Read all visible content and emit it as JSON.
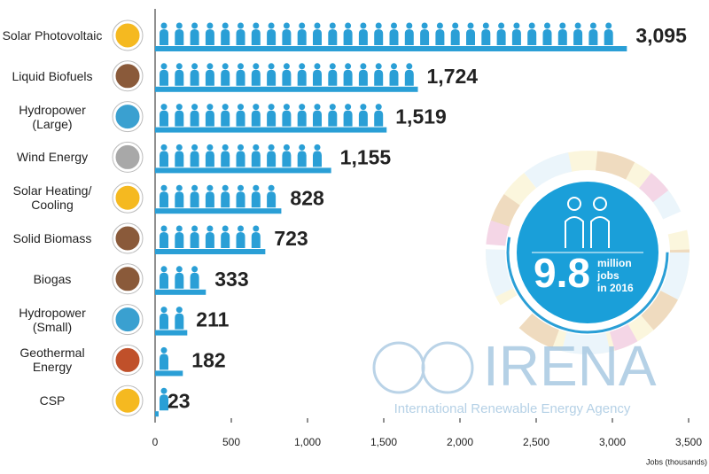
{
  "chart_data": {
    "type": "bar",
    "orientation": "horizontal",
    "categories": [
      "Solar Photovoltaic",
      "Liquid Biofuels",
      "Hydropower (Large)",
      "Wind Energy",
      "Solar Heating/ Cooling",
      "Solid Biomass",
      "Biogas",
      "Hydropower (Small)",
      "Geothermal Energy",
      "CSP"
    ],
    "values": [
      3095,
      1724,
      1519,
      1155,
      828,
      723,
      333,
      211,
      182,
      23
    ],
    "value_labels": [
      "3,095",
      "1,724",
      "1,519",
      "1,155",
      "828",
      "723",
      "333",
      "211",
      "182",
      "23"
    ],
    "color": "#2a9fd6",
    "icon_colors": [
      "#f5b920",
      "#8a5a3a",
      "#3aa0d0",
      "#a8a8a8",
      "#f5b920",
      "#8a5a3a",
      "#8a5a3a",
      "#3aa0d0",
      "#c0502a",
      "#f5b920"
    ],
    "xlim": [
      0,
      3500
    ],
    "xticks": [
      0,
      500,
      {
        "value": 1000,
        "label": "1,000"
      },
      {
        "value": 1500,
        "label": "1,500"
      },
      {
        "value": 2000,
        "label": "2,000"
      },
      {
        "value": 2500,
        "label": "2,500"
      },
      {
        "value": 3000,
        "label": "3,000"
      },
      {
        "value": 3500,
        "label": "3,500"
      }
    ],
    "xlabel": "Jobs (thousands)",
    "infographic": {
      "headline": "9.8",
      "caption": [
        "million",
        "jobs",
        "in 2016"
      ]
    },
    "watermark": {
      "name": "IRENA",
      "subtitle": "International Renewable Energy Agency"
    }
  }
}
